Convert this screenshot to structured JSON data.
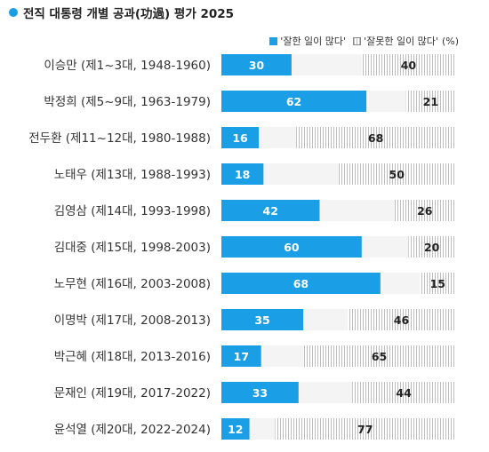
{
  "title": "전직 대통령 개별 공과(功過) 평가 2025",
  "legend": {
    "positive": "'잘한 일이 많다'",
    "negative": "'잘못한 일이 많다'",
    "unit": "(%)"
  },
  "colors": {
    "positive": "#1a9fe6",
    "negative_stripe": "#bdbdbd",
    "track": "#f4f4f4",
    "title_dot": "#1a9fe6"
  },
  "chart_data": {
    "type": "bar",
    "title": "전직 대통령 개별 공과(功過) 평가 2025",
    "categories": [
      "이승만 (제1~3대, 1948-1960)",
      "박정희 (제5~9대, 1963-1979)",
      "전두환 (제11~12대, 1980-1988)",
      "노태우 (제13대, 1988-1993)",
      "김영삼 (제14대, 1993-1998)",
      "김대중 (제15대, 1998-2003)",
      "노무현 (제16대, 2003-2008)",
      "이명박 (제17대, 2008-2013)",
      "박근혜 (제18대, 2013-2016)",
      "문재인 (제19대, 2017-2022)",
      "윤석열 (제20대, 2022-2024)"
    ],
    "series": [
      {
        "name": "'잘한 일이 많다'",
        "values": [
          30,
          62,
          16,
          18,
          42,
          60,
          68,
          35,
          17,
          33,
          12
        ],
        "align": "left"
      },
      {
        "name": "'잘못한 일이 많다'",
        "values": [
          40,
          21,
          68,
          50,
          26,
          20,
          15,
          46,
          65,
          44,
          77
        ],
        "align": "right"
      }
    ],
    "xlim": [
      0,
      100
    ],
    "unit": "%"
  }
}
